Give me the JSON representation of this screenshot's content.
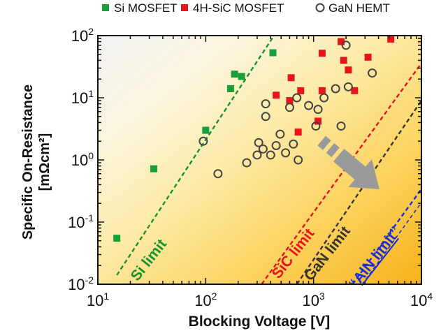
{
  "chart_data": {
    "type": "scatter",
    "xlabel": "Blocking Voltage [V]",
    "ylabel": "Specific On-Resistance",
    "ylabel_unit": "[mΩcm²]",
    "x_scale": "log",
    "y_scale": "log",
    "xlim": [
      10,
      10000
    ],
    "ylim": [
      0.01,
      100
    ],
    "x_ticks": [
      {
        "value": 10,
        "base": "10",
        "exp": "1"
      },
      {
        "value": 100,
        "base": "10",
        "exp": "2"
      },
      {
        "value": 1000,
        "base": "10",
        "exp": "3"
      },
      {
        "value": 10000,
        "base": "10",
        "exp": "4"
      }
    ],
    "y_ticks": [
      {
        "value": 0.01,
        "base": "10",
        "exp": "-2"
      },
      {
        "value": 0.1,
        "base": "10",
        "exp": "-1"
      },
      {
        "value": 1,
        "base": "10",
        "exp": "0"
      },
      {
        "value": 10,
        "base": "10",
        "exp": "1"
      },
      {
        "value": 100,
        "base": "10",
        "exp": "2"
      }
    ],
    "legend_position": "top",
    "series": [
      {
        "name": "Si MOSFET",
        "marker": "filled-square",
        "color": "#1a9e3a",
        "points": [
          [
            15,
            0.055
          ],
          [
            33,
            0.72
          ],
          [
            100,
            3.0
          ],
          [
            170,
            14
          ],
          [
            185,
            24
          ],
          [
            215,
            22
          ],
          [
            420,
            53
          ]
        ]
      },
      {
        "name": "4H-SiC MOSFET",
        "marker": "filled-square",
        "color": "#e8141c",
        "points": [
          [
            450,
            11
          ],
          [
            600,
            9
          ],
          [
            620,
            21
          ],
          [
            720,
            2.8
          ],
          [
            760,
            13
          ],
          [
            1100,
            4.2
          ],
          [
            1200,
            13
          ],
          [
            1200,
            52
          ],
          [
            1800,
            80
          ],
          [
            1900,
            40
          ],
          [
            2100,
            28
          ],
          [
            2400,
            13
          ],
          [
            3200,
            45
          ],
          [
            5200,
            88
          ]
        ]
      },
      {
        "name": "GaN HEMT",
        "marker": "open-circle",
        "color": "#444444",
        "points": [
          [
            95,
            2.0
          ],
          [
            130,
            0.6
          ],
          [
            240,
            0.9
          ],
          [
            300,
            1.2
          ],
          [
            310,
            1.9
          ],
          [
            340,
            1.5
          ],
          [
            360,
            8.0
          ],
          [
            360,
            5.0
          ],
          [
            400,
            1.2
          ],
          [
            450,
            1.7
          ],
          [
            490,
            2.6
          ],
          [
            550,
            1.3
          ],
          [
            600,
            7.0
          ],
          [
            650,
            1.8
          ],
          [
            700,
            10
          ],
          [
            720,
            1.0
          ],
          [
            900,
            7.5
          ],
          [
            1050,
            3.5
          ],
          [
            1100,
            6.5
          ],
          [
            1250,
            10
          ],
          [
            1600,
            14
          ],
          [
            1800,
            3.5
          ],
          [
            2000,
            70
          ],
          [
            2100,
            15
          ],
          [
            3500,
            25
          ]
        ]
      }
    ],
    "limit_lines": [
      {
        "label": "Si limit",
        "color": "#17922f",
        "x0": 15,
        "y0": 0.014,
        "x1": 430,
        "y1": 100
      },
      {
        "label": "SiC limit",
        "color": "#e8141c",
        "x0": 330,
        "y0": 0.01,
        "x1": 10000,
        "y1": 36
      },
      {
        "label": "GaN limit",
        "color": "#333333",
        "x0": 700,
        "y0": 0.01,
        "x1": 10000,
        "y1": 9.0
      },
      {
        "label": "AlN limit",
        "color": "#1a2fd8",
        "x0": 2300,
        "y0": 0.01,
        "x1": 10000,
        "y1": 0.34
      }
    ],
    "aln_quote_open": "“",
    "aln_quote_close": "”",
    "grid": false
  }
}
